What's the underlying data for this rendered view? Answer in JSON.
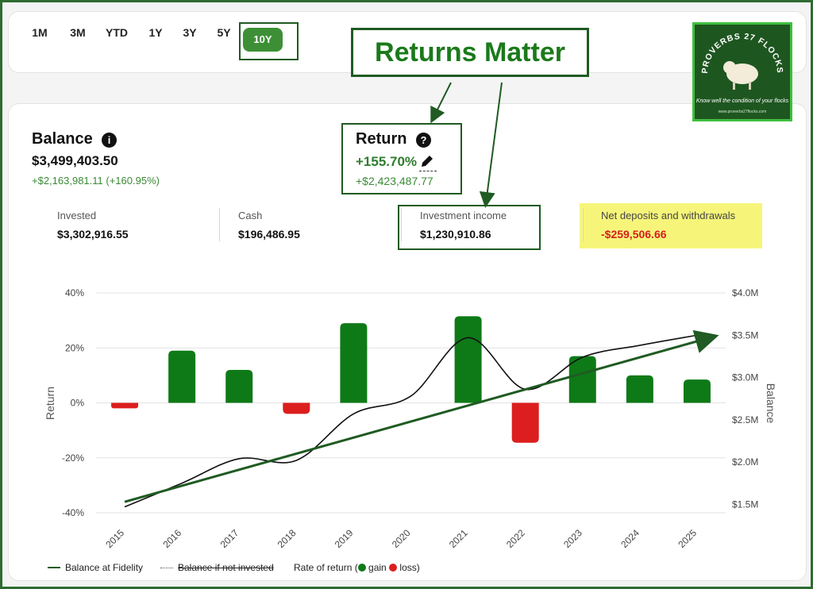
{
  "range_tabs": [
    "1M",
    "3M",
    "YTD",
    "1Y",
    "3Y",
    "5Y"
  ],
  "range_active": "10Y",
  "callout_title": "Returns Matter",
  "logo": {
    "title": "PROVERBS 27 FLOCKS",
    "verse": "Know well the condition of your flocks",
    "url": "www.proverbs27flocks.com"
  },
  "balance": {
    "label": "Balance",
    "value": "$3,499,403.50",
    "change": "+$2,163,981.11",
    "change_pct": "(+160.95%)"
  },
  "return": {
    "label": "Return",
    "pct": "+155.70%",
    "amount": "+$2,423,487.77"
  },
  "stats": {
    "invested_label": "Invested",
    "invested_value": "$3,302,916.55",
    "cash_label": "Cash",
    "cash_value": "$196,486.95",
    "income_label": "Investment income",
    "income_value": "$1,230,910.86",
    "net_label": "Net deposits and withdrawals",
    "net_value": "-$259,506.66"
  },
  "legend": {
    "balance": "Balance at Fidelity",
    "not_invested": "Balance if not invested",
    "rate_prefix": "Rate of return (",
    "gain": "gain",
    "loss": "loss)"
  },
  "colors": {
    "gain": "#0e7a17",
    "loss": "#dc1e1e",
    "accent": "#3d8f36",
    "highlight": "#f6f57a",
    "arrow": "#1f5b22"
  },
  "chart_data": {
    "type": "bar",
    "categories": [
      "2015",
      "2016",
      "2017",
      "2018",
      "2019",
      "2020",
      "2021",
      "2022",
      "2023",
      "2024",
      "2025"
    ],
    "series": [
      {
        "name": "Rate of return",
        "values": [
          -2,
          19,
          12,
          -4,
          29,
          0,
          31.5,
          -14.5,
          17,
          10,
          8.5
        ]
      }
    ],
    "balance_line": {
      "x": [
        "2015",
        "2016",
        "2017",
        "2018",
        "2019",
        "2020",
        "2021",
        "2022",
        "2023",
        "2024",
        "2025"
      ],
      "values": [
        1.47,
        1.75,
        2.04,
        2.02,
        2.57,
        2.78,
        3.47,
        2.86,
        3.24,
        3.38,
        3.5
      ]
    },
    "trend_line": {
      "start": 1.53,
      "end": 3.47
    },
    "ylabel": "Return",
    "y2label": "Balance",
    "ylim": [
      -40,
      40
    ],
    "y2lim": [
      1.4,
      4.0
    ],
    "yticks": [
      "40%",
      "20%",
      "0%",
      "-20%",
      "-40%"
    ],
    "y2ticks": [
      "$4.0M",
      "$3.5M",
      "$3.0M",
      "$2.5M",
      "$2.0M",
      "$1.5M"
    ],
    "grid": true
  }
}
